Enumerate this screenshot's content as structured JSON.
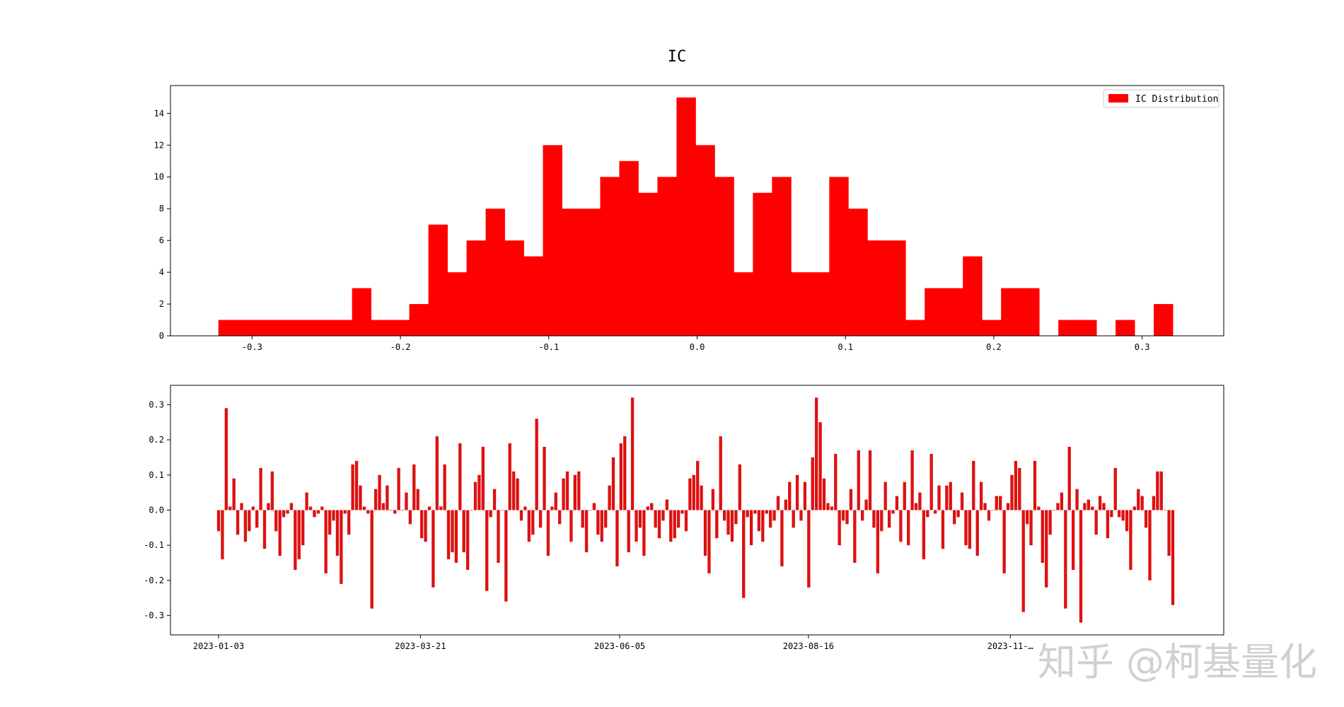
{
  "figure": {
    "title": "IC",
    "watermark": "知乎 @柯基量化"
  },
  "colors": {
    "hist": "#ff0000",
    "bars": "#dd1111",
    "axes": "#000000"
  },
  "chart_data": [
    {
      "type": "bar",
      "subtype": "histogram",
      "legend": {
        "label": "IC Distribution",
        "position": "top-right"
      },
      "bin_start": -0.3227,
      "bin_end": 0.3207,
      "counts": [
        1,
        1,
        1,
        1,
        1,
        1,
        1,
        3,
        1,
        1,
        2,
        7,
        4,
        6,
        8,
        6,
        5,
        12,
        8,
        8,
        10,
        11,
        9,
        10,
        15,
        12,
        10,
        4,
        9,
        10,
        4,
        4,
        10,
        8,
        6,
        6,
        1,
        3,
        3,
        5,
        1,
        3,
        3,
        0,
        1,
        1,
        0,
        1,
        0,
        2
      ],
      "xlim": [
        -0.355,
        0.355
      ],
      "ylim": [
        0,
        15.75
      ],
      "x_ticks": [
        -0.3,
        -0.2,
        -0.1,
        0.0,
        0.1,
        0.2,
        0.3
      ],
      "x_tick_labels": [
        "-0.3",
        "-0.2",
        "-0.1",
        "0.0",
        "0.1",
        "0.2",
        "0.3"
      ],
      "y_ticks": [
        0,
        2,
        4,
        6,
        8,
        10,
        12,
        14
      ],
      "y_tick_labels": [
        "0",
        "2",
        "4",
        "6",
        "8",
        "10",
        "12",
        "14"
      ],
      "grid": false
    },
    {
      "type": "bar",
      "x_start_date": "2023-01-03",
      "x_tick_labels": [
        "2023-01-03",
        "2023-03-21",
        "2023-06-05",
        "2023-08-16",
        "2023-11-…"
      ],
      "x_tick_dates": [
        "2023-01-03",
        "2023-03-21",
        "2023-06-05",
        "2023-08-16",
        "2023-11-01"
      ],
      "y_ticks": [
        -0.3,
        -0.2,
        -0.1,
        0.0,
        0.1,
        0.2,
        0.3
      ],
      "y_tick_labels": [
        "-0.3",
        "-0.2",
        "-0.1",
        "0.0",
        "0.1",
        "0.2",
        "0.3"
      ],
      "ylim": [
        -0.355,
        0.355
      ],
      "grid": false,
      "values": [
        -0.06,
        -0.14,
        0.29,
        0.01,
        0.09,
        -0.07,
        0.02,
        -0.09,
        -0.06,
        0.01,
        -0.05,
        0.12,
        -0.11,
        0.02,
        0.11,
        -0.06,
        -0.13,
        -0.02,
        -0.01,
        0.02,
        -0.17,
        -0.14,
        -0.1,
        0.05,
        0.01,
        -0.02,
        -0.01,
        0.01,
        -0.18,
        -0.07,
        -0.03,
        -0.13,
        -0.21,
        -0.01,
        -0.07,
        0.13,
        0.14,
        0.07,
        0.01,
        -0.01,
        -0.28,
        0.06,
        0.1,
        0.02,
        0.07,
        0.0,
        -0.01,
        0.12,
        0.0,
        0.05,
        -0.04,
        0.13,
        0.06,
        -0.08,
        -0.09,
        0.01,
        -0.22,
        0.21,
        0.01,
        0.13,
        -0.14,
        -0.12,
        -0.15,
        0.19,
        -0.12,
        -0.17,
        0.0,
        0.08,
        0.1,
        0.18,
        -0.23,
        -0.02,
        0.06,
        -0.15,
        0.0,
        -0.26,
        0.19,
        0.11,
        0.09,
        -0.03,
        0.01,
        -0.09,
        -0.07,
        0.26,
        -0.05,
        0.18,
        -0.13,
        0.01,
        0.05,
        -0.04,
        0.09,
        0.11,
        -0.09,
        0.1,
        0.11,
        -0.05,
        -0.12,
        0.0,
        0.02,
        -0.07,
        -0.09,
        -0.05,
        0.07,
        0.15,
        -0.16,
        0.19,
        0.21,
        -0.12,
        0.32,
        -0.09,
        -0.05,
        -0.13,
        0.01,
        0.02,
        -0.05,
        -0.08,
        -0.03,
        0.03,
        -0.09,
        -0.08,
        -0.05,
        -0.01,
        -0.06,
        0.09,
        0.1,
        0.14,
        0.07,
        -0.13,
        -0.18,
        0.06,
        -0.08,
        0.21,
        -0.03,
        -0.07,
        -0.09,
        -0.04,
        0.13,
        -0.25,
        -0.02,
        -0.1,
        -0.01,
        -0.06,
        -0.09,
        -0.01,
        -0.05,
        -0.03,
        0.04,
        -0.16,
        0.03,
        0.08,
        -0.05,
        0.1,
        -0.03,
        0.08,
        -0.22,
        0.15,
        0.32,
        0.25,
        0.09,
        0.02,
        0.01,
        0.16,
        -0.1,
        -0.03,
        -0.04,
        0.06,
        -0.15,
        0.17,
        -0.03,
        0.03,
        0.17,
        -0.05,
        -0.18,
        -0.06,
        0.08,
        -0.05,
        -0.01,
        0.04,
        -0.09,
        0.08,
        -0.1,
        0.17,
        0.02,
        0.05,
        -0.14,
        -0.02,
        0.16,
        -0.01,
        0.07,
        -0.11,
        0.07,
        0.08,
        -0.04,
        -0.02,
        0.05,
        -0.1,
        -0.11,
        0.14,
        -0.13,
        0.08,
        0.02,
        -0.03,
        0.0,
        0.04,
        0.04,
        -0.18,
        0.02,
        0.1,
        0.14,
        0.12,
        -0.29,
        -0.04,
        -0.1,
        0.14,
        0.01,
        -0.15,
        -0.22,
        -0.07,
        0.0,
        0.02,
        0.05,
        -0.28,
        0.18,
        -0.17,
        0.06,
        -0.32,
        0.02,
        0.03,
        0.01,
        -0.07,
        0.04,
        0.02,
        -0.08,
        -0.02,
        0.12,
        -0.02,
        -0.03,
        -0.06,
        -0.17,
        0.01,
        0.06,
        0.04,
        -0.05,
        -0.2,
        0.04,
        0.11,
        0.11,
        0.0,
        -0.13,
        -0.27
      ]
    }
  ]
}
